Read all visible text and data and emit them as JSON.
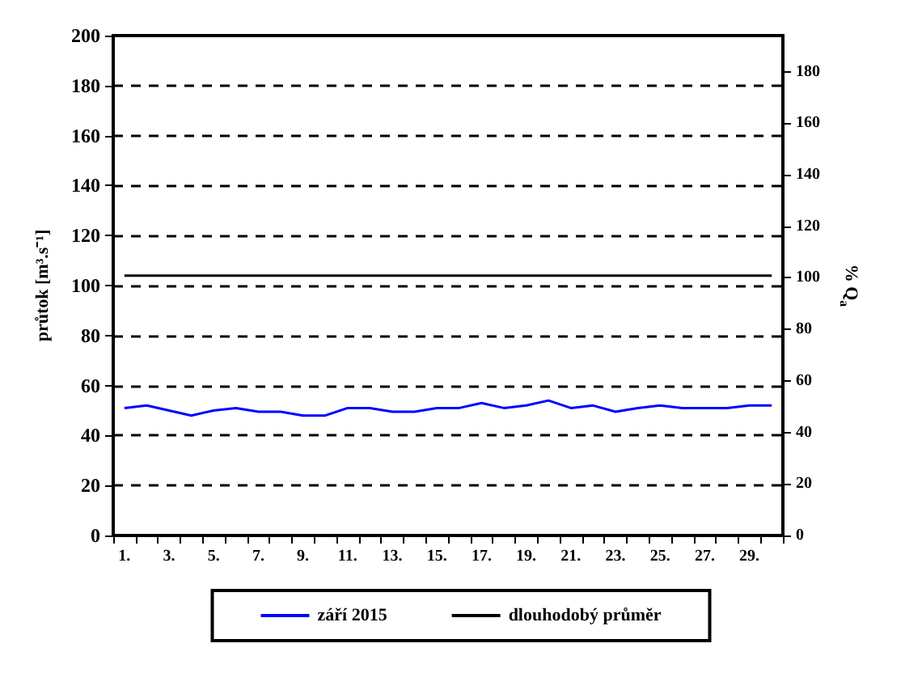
{
  "chart_data": {
    "type": "line",
    "ylabel": "průtok [m³.s⁻¹]",
    "y2label": "% Q$_{a}$",
    "categories": [
      "1.",
      null,
      "3.",
      null,
      "5.",
      null,
      "7.",
      null,
      "9.",
      null,
      "11.",
      null,
      "13.",
      null,
      "15.",
      null,
      "17.",
      null,
      "19.",
      null,
      "21.",
      null,
      "23.",
      null,
      "25.",
      null,
      "27.",
      null,
      "29.",
      null
    ],
    "series": [
      {
        "name": "září 2015",
        "color": "#0000ff",
        "values": [
          51,
          52,
          50,
          48,
          50,
          51,
          49.5,
          49.5,
          48,
          48,
          51,
          51,
          49.5,
          49.5,
          51,
          51,
          53,
          51,
          52,
          54,
          51,
          52,
          49.5,
          51,
          52,
          51,
          51,
          51,
          52,
          52
        ]
      },
      {
        "name": "dlouhodobý průměr",
        "color": "#000000",
        "values": [
          104,
          104,
          104,
          104,
          104,
          104,
          104,
          104,
          104,
          104,
          104,
          104,
          104,
          104,
          104,
          104,
          104,
          104,
          104,
          104,
          104,
          104,
          104,
          104,
          104,
          104,
          104,
          104,
          104,
          104
        ]
      }
    ],
    "ylim": [
      0,
      200
    ],
    "yticks": [
      0,
      20,
      40,
      60,
      80,
      100,
      120,
      140,
      160,
      180,
      200
    ],
    "y2lim": [
      0,
      194
    ],
    "y2ticks": [
      0,
      20,
      40,
      60,
      80,
      100,
      120,
      140,
      160,
      180
    ],
    "grid": "y",
    "line_style": "solid",
    "marker": "none",
    "legend": "bottom"
  }
}
